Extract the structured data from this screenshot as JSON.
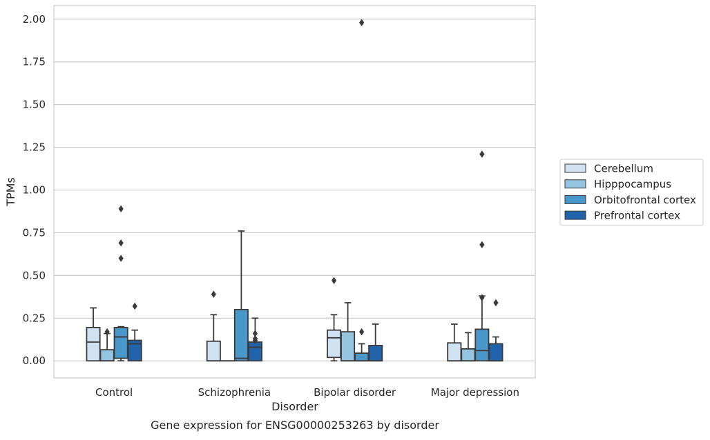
{
  "chart_data": {
    "type": "boxplot",
    "caption": "Gene expression for ENSG00000253263 by disorder",
    "xlabel": "Disorder",
    "ylabel": "TPMs",
    "ylim": [
      -0.1,
      2.08
    ],
    "yticks": [
      0.0,
      0.25,
      0.5,
      0.75,
      1.0,
      1.25,
      1.5,
      1.75,
      2.0
    ],
    "ytick_labels": [
      "0.00",
      "0.25",
      "0.50",
      "0.75",
      "1.00",
      "1.25",
      "1.50",
      "1.75",
      "2.00"
    ],
    "grid": true,
    "legend_position": "right",
    "categories": [
      "Control",
      "Schizophrenia",
      "Bipolar disorder",
      "Major depression"
    ],
    "series": [
      {
        "name": "Cerebellum",
        "color": "#d0e1f2",
        "boxes": [
          {
            "min": 0.0,
            "q1": 0.0,
            "median": 0.11,
            "q3": 0.195,
            "max": 0.31,
            "outliers": []
          },
          {
            "min": 0.0,
            "q1": 0.0,
            "median": 0.0,
            "q3": 0.115,
            "max": 0.27,
            "outliers": [
              0.39
            ]
          },
          {
            "min": 0.0,
            "q1": 0.02,
            "median": 0.135,
            "q3": 0.18,
            "max": 0.27,
            "outliers": [
              0.47
            ]
          },
          {
            "min": 0.0,
            "q1": 0.0,
            "median": 0.0,
            "q3": 0.105,
            "max": 0.215,
            "outliers": []
          }
        ]
      },
      {
        "name": "Hipppocampus",
        "color": "#94c4df",
        "boxes": [
          {
            "min": 0.0,
            "q1": 0.0,
            "median": 0.0,
            "q3": 0.065,
            "max": 0.16,
            "outliers": [
              0.17
            ]
          },
          {
            "min": 0.0,
            "q1": 0.0,
            "median": 0.0,
            "q3": 0.0,
            "max": 0.0,
            "outliers": []
          },
          {
            "min": 0.0,
            "q1": 0.0,
            "median": 0.0,
            "q3": 0.17,
            "max": 0.34,
            "outliers": []
          },
          {
            "min": 0.0,
            "q1": 0.0,
            "median": 0.0,
            "q3": 0.07,
            "max": 0.165,
            "outliers": []
          }
        ]
      },
      {
        "name": "Orbitofrontal cortex",
        "color": "#4a98c9",
        "boxes": [
          {
            "min": 0.0,
            "q1": 0.015,
            "median": 0.14,
            "q3": 0.195,
            "max": 0.2,
            "outliers": [
              0.6,
              0.69,
              0.89
            ]
          },
          {
            "min": 0.0,
            "q1": 0.0,
            "median": 0.015,
            "q3": 0.3,
            "max": 0.76,
            "outliers": []
          },
          {
            "min": 0.0,
            "q1": 0.0,
            "median": 0.0,
            "q3": 0.045,
            "max": 0.1,
            "outliers": [
              0.17,
              1.98
            ]
          },
          {
            "min": 0.0,
            "q1": 0.0,
            "median": 0.06,
            "q3": 0.185,
            "max": 0.38,
            "outliers": [
              0.37,
              0.68,
              1.21
            ]
          }
        ]
      },
      {
        "name": "Prefrontal cortex",
        "color": "#2163aa",
        "boxes": [
          {
            "min": 0.0,
            "q1": 0.0,
            "median": 0.1,
            "q3": 0.12,
            "max": 0.18,
            "outliers": [
              0.32
            ]
          },
          {
            "min": 0.0,
            "q1": 0.0,
            "median": 0.08,
            "q3": 0.11,
            "max": 0.25,
            "outliers": [
              0.12,
              0.13,
              0.16
            ]
          },
          {
            "min": 0.0,
            "q1": 0.0,
            "median": 0.0,
            "q3": 0.09,
            "max": 0.215,
            "outliers": []
          },
          {
            "min": 0.0,
            "q1": 0.0,
            "median": 0.0,
            "q3": 0.1,
            "max": 0.14,
            "outliers": [
              0.34
            ]
          }
        ]
      }
    ]
  }
}
